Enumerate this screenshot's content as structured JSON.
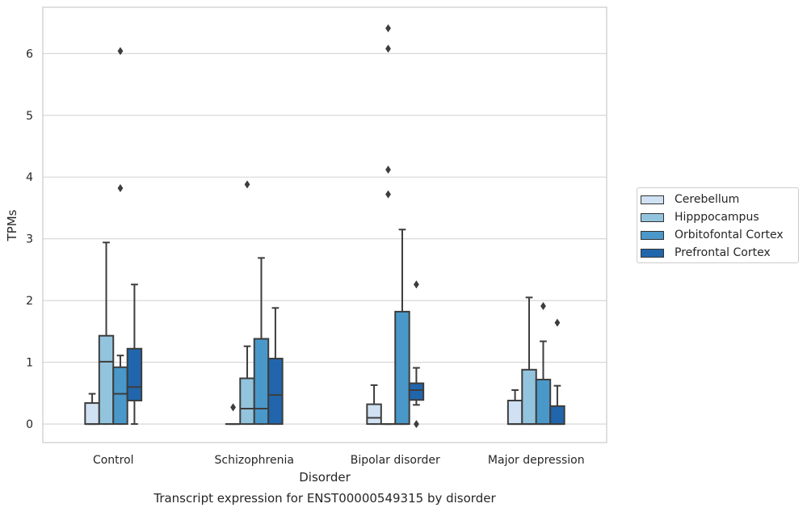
{
  "chart_data": {
    "type": "box",
    "title": "",
    "caption": "Transcript expression for ENST00000549315 by disorder",
    "xlabel": "Disorder",
    "ylabel": "TPMs",
    "ylim": [
      -0.3,
      6.75
    ],
    "yticks": [
      0,
      1,
      2,
      3,
      4,
      5,
      6
    ],
    "grid": "horizontal",
    "legend_position": "right",
    "categories": [
      "Control",
      "Schizophrenia",
      "Bipolar disorder",
      "Major depression"
    ],
    "series": [
      {
        "name": "Cerebellum",
        "color": "#cfe1f2",
        "boxes": [
          {
            "low": 0,
            "q1": 0,
            "median": 0,
            "q3": 0.34,
            "high": 0.49,
            "outliers": []
          },
          {
            "low": 0,
            "q1": 0,
            "median": 0,
            "q3": 0,
            "high": 0,
            "outliers": [
              0.27
            ]
          },
          {
            "low": 0,
            "q1": 0,
            "median": 0.1,
            "q3": 0.32,
            "high": 0.63,
            "outliers": []
          },
          {
            "low": 0,
            "q1": 0,
            "median": 0,
            "q3": 0.38,
            "high": 0.55,
            "outliers": []
          }
        ]
      },
      {
        "name": "Hipppocampus",
        "color": "#93c4de",
        "boxes": [
          {
            "low": 0,
            "q1": 0,
            "median": 1.01,
            "q3": 1.43,
            "high": 2.94,
            "outliers": []
          },
          {
            "low": 0,
            "q1": 0,
            "median": 0.25,
            "q3": 0.74,
            "high": 1.26,
            "outliers": [
              3.88
            ]
          },
          {
            "low": 0,
            "q1": 0,
            "median": 0,
            "q3": 0,
            "high": 0,
            "outliers": [
              3.72,
              4.12,
              6.08,
              6.41
            ]
          },
          {
            "low": 0,
            "q1": 0,
            "median": 0,
            "q3": 0.88,
            "high": 2.05,
            "outliers": []
          }
        ]
      },
      {
        "name": "Orbitofontal Cortex",
        "color": "#4a98c9",
        "boxes": [
          {
            "low": 0,
            "q1": 0,
            "median": 0.49,
            "q3": 0.92,
            "high": 1.11,
            "outliers": [
              3.82,
              6.04
            ]
          },
          {
            "low": 0,
            "q1": 0,
            "median": 0.25,
            "q3": 1.38,
            "high": 2.69,
            "outliers": []
          },
          {
            "low": 0,
            "q1": 0,
            "median": 0,
            "q3": 1.82,
            "high": 3.15,
            "outliers": []
          },
          {
            "low": 0,
            "q1": 0,
            "median": 0,
            "q3": 0.72,
            "high": 1.34,
            "outliers": [
              1.91
            ]
          }
        ]
      },
      {
        "name": "Prefrontal Cortex",
        "color": "#2166ac",
        "boxes": [
          {
            "low": 0,
            "q1": 0.38,
            "median": 0.6,
            "q3": 1.22,
            "high": 2.26,
            "outliers": []
          },
          {
            "low": 0,
            "q1": 0,
            "median": 0.47,
            "q3": 1.06,
            "high": 1.88,
            "outliers": []
          },
          {
            "low": 0.31,
            "q1": 0.39,
            "median": 0.55,
            "q3": 0.66,
            "high": 0.91,
            "outliers": [
              0,
              2.26
            ]
          },
          {
            "low": 0,
            "q1": 0,
            "median": 0,
            "q3": 0.29,
            "high": 0.62,
            "outliers": [
              1.64
            ]
          }
        ]
      }
    ]
  }
}
